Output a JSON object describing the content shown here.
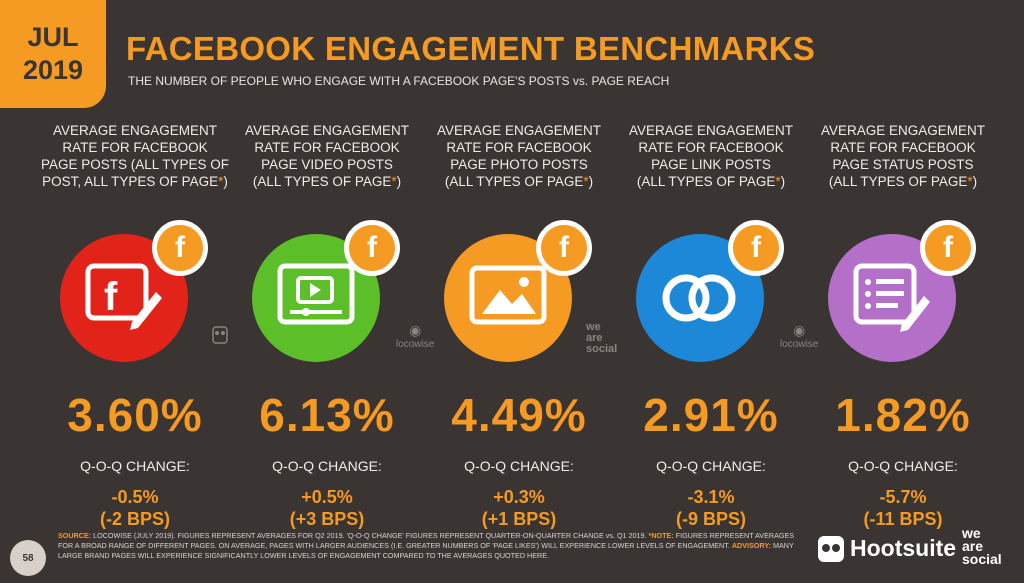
{
  "header": {
    "month": "JUL",
    "year": "2019",
    "title": "FACEBOOK ENGAGEMENT BENCHMARKS",
    "subtitle": "THE NUMBER OF PEOPLE WHO ENGAGE WITH A FACEBOOK PAGE'S POSTS vs. PAGE REACH"
  },
  "badge_letter": "f",
  "q_label": "Q-O-Q CHANGE:",
  "columns": [
    {
      "label_lines": [
        "AVERAGE ENGAGEMENT",
        "RATE FOR FACEBOOK",
        "PAGE POSTS (ALL TYPES OF",
        "POST, ALL TYPES OF PAGE"
      ],
      "value": "3.60%",
      "change_pct": "-0.5%",
      "change_bps": "(-2 BPS)",
      "color": "#e2231a",
      "icon": "facebook-edit-icon"
    },
    {
      "label_lines": [
        "AVERAGE ENGAGEMENT",
        "RATE FOR FACEBOOK",
        "PAGE VIDEO POSTS",
        "(ALL TYPES OF PAGE"
      ],
      "value": "6.13%",
      "change_pct": "+0.5%",
      "change_bps": "(+3 BPS)",
      "color": "#5cbf2a",
      "icon": "video-player-icon"
    },
    {
      "label_lines": [
        "AVERAGE ENGAGEMENT",
        "RATE FOR FACEBOOK",
        "PAGE PHOTO POSTS",
        "(ALL TYPES OF PAGE"
      ],
      "value": "4.49%",
      "change_pct": "+0.3%",
      "change_bps": "(+1 BPS)",
      "color": "#f59a22",
      "icon": "photo-icon"
    },
    {
      "label_lines": [
        "AVERAGE ENGAGEMENT",
        "RATE FOR FACEBOOK",
        "PAGE LINK POSTS",
        "(ALL TYPES OF PAGE"
      ],
      "value": "2.91%",
      "change_pct": "-3.1%",
      "change_bps": "(-9 BPS)",
      "color": "#1e88d8",
      "icon": "link-icon"
    },
    {
      "label_lines": [
        "AVERAGE ENGAGEMENT",
        "RATE FOR FACEBOOK",
        "PAGE STATUS POSTS",
        "(ALL TYPES OF PAGE"
      ],
      "value": "1.82%",
      "change_pct": "-5.7%",
      "change_bps": "(-11 BPS)",
      "color": "#b46fc8",
      "icon": "status-list-icon"
    }
  ],
  "source_logos": {
    "locowise": "locowise",
    "we_are_social": "we are social"
  },
  "footer": {
    "source_label": "SOURCE:",
    "source_text": "LOCOWISE (JULY 2019). FIGURES REPRESENT AVERAGES FOR Q2 2019. 'Q-O-Q CHANGE' FIGURES REPRESENT QUARTER-ON-QUARTER CHANGE vs. Q1 2019.",
    "note_label": "*NOTE:",
    "note_text": "FIGURES REPRESENT AVERAGES FOR A BROAD RANGE OF DIFFERENT PAGES. ON AVERAGE, PAGES WITH LARGER AUDIENCES (I.E. GREATER NUMBERS OF 'PAGE LIKES') WILL EXPERIENCE LOWER LEVELS OF ENGAGEMENT.",
    "advisory_label": "ADVISORY:",
    "advisory_text": "MANY LARGE BRAND PAGES WILL EXPERIENCE SIGNIFICANTLY LOWER LEVELS OF ENGAGEMENT COMPARED TO THE AVERAGES QUOTED HERE."
  },
  "page_number": "58",
  "brand": {
    "hootsuite": "Hootsuite",
    "we_are_social": [
      "we",
      "are",
      "social"
    ]
  }
}
